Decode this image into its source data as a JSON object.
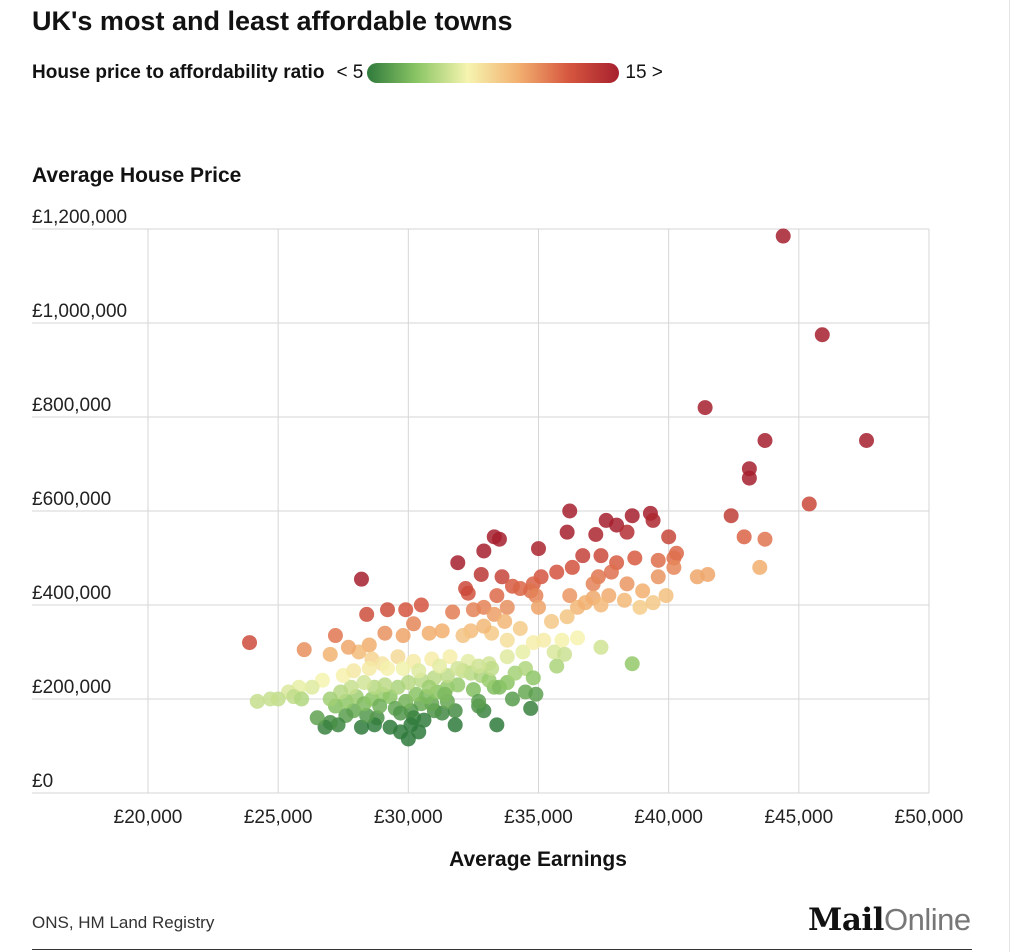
{
  "chart_data": {
    "type": "scatter",
    "title": "UK's most and least affordable towns",
    "legend": {
      "label": "House price to affordability ratio",
      "min_label": "< 5",
      "max_label": "15 >",
      "min": 5,
      "max": 15,
      "colors": [
        "#2f7a3c",
        "#8cc665",
        "#f6f4b0",
        "#f2b070",
        "#d6573f",
        "#a6202e"
      ]
    },
    "xlabel": "Average Earnings",
    "ylabel": "Average House Price",
    "xlim": [
      20000,
      50000
    ],
    "ylim": [
      0,
      1200000
    ],
    "x_ticks": [
      {
        "value": 20000,
        "label": "£20,000"
      },
      {
        "value": 25000,
        "label": "£25,000"
      },
      {
        "value": 30000,
        "label": "£30,000"
      },
      {
        "value": 35000,
        "label": "£35,000"
      },
      {
        "value": 40000,
        "label": "£40,000"
      },
      {
        "value": 45000,
        "label": "£45,000"
      },
      {
        "value": 50000,
        "label": "£50,000"
      }
    ],
    "y_ticks": [
      {
        "value": 0,
        "label": "£0"
      },
      {
        "value": 200000,
        "label": "£200,000"
      },
      {
        "value": 400000,
        "label": "£400,000"
      },
      {
        "value": 600000,
        "label": "£600,000"
      },
      {
        "value": 800000,
        "label": "£800,000"
      },
      {
        "value": 1000000,
        "label": "£1,000,000"
      },
      {
        "value": 1200000,
        "label": "£1,200,000"
      }
    ],
    "grid": true,
    "points": [
      [
        44400,
        1185000
      ],
      [
        45900,
        975000
      ],
      [
        47600,
        750000
      ],
      [
        41400,
        820000
      ],
      [
        43700,
        750000
      ],
      [
        43100,
        690000
      ],
      [
        43100,
        670000
      ],
      [
        45400,
        615000
      ],
      [
        42400,
        590000
      ],
      [
        42900,
        545000
      ],
      [
        43700,
        540000
      ],
      [
        43500,
        480000
      ],
      [
        41100,
        460000
      ],
      [
        41500,
        465000
      ],
      [
        36200,
        600000
      ],
      [
        37600,
        580000
      ],
      [
        38000,
        570000
      ],
      [
        38600,
        590000
      ],
      [
        39300,
        595000
      ],
      [
        39400,
        580000
      ],
      [
        38400,
        555000
      ],
      [
        37200,
        550000
      ],
      [
        36100,
        555000
      ],
      [
        35000,
        520000
      ],
      [
        33300,
        545000
      ],
      [
        33500,
        540000
      ],
      [
        32900,
        515000
      ],
      [
        31900,
        490000
      ],
      [
        32800,
        465000
      ],
      [
        33600,
        460000
      ],
      [
        28200,
        455000
      ],
      [
        36700,
        505000
      ],
      [
        37400,
        505000
      ],
      [
        38700,
        500000
      ],
      [
        39600,
        495000
      ],
      [
        40000,
        545000
      ],
      [
        40300,
        510000
      ],
      [
        40200,
        500000
      ],
      [
        38000,
        490000
      ],
      [
        37800,
        470000
      ],
      [
        37300,
        460000
      ],
      [
        37100,
        445000
      ],
      [
        36300,
        480000
      ],
      [
        35700,
        470000
      ],
      [
        35100,
        460000
      ],
      [
        34800,
        445000
      ],
      [
        34700,
        430000
      ],
      [
        34900,
        420000
      ],
      [
        34000,
        440000
      ],
      [
        34300,
        435000
      ],
      [
        33400,
        420000
      ],
      [
        32300,
        425000
      ],
      [
        32200,
        435000
      ],
      [
        31700,
        385000
      ],
      [
        30500,
        400000
      ],
      [
        29900,
        390000
      ],
      [
        28400,
        380000
      ],
      [
        29200,
        390000
      ],
      [
        32900,
        395000
      ],
      [
        33800,
        395000
      ],
      [
        32500,
        390000
      ],
      [
        33300,
        380000
      ],
      [
        33700,
        365000
      ],
      [
        35000,
        395000
      ],
      [
        36200,
        420000
      ],
      [
        36500,
        395000
      ],
      [
        37100,
        415000
      ],
      [
        37700,
        420000
      ],
      [
        38300,
        410000
      ],
      [
        38900,
        395000
      ],
      [
        39400,
        405000
      ],
      [
        39900,
        420000
      ],
      [
        40200,
        480000
      ],
      [
        39600,
        460000
      ],
      [
        39000,
        430000
      ],
      [
        38400,
        445000
      ],
      [
        37400,
        400000
      ],
      [
        36800,
        405000
      ],
      [
        36100,
        375000
      ],
      [
        35500,
        365000
      ],
      [
        35900,
        325000
      ],
      [
        34300,
        350000
      ],
      [
        33800,
        325000
      ],
      [
        33200,
        340000
      ],
      [
        32900,
        355000
      ],
      [
        32400,
        345000
      ],
      [
        32100,
        335000
      ],
      [
        31300,
        345000
      ],
      [
        30800,
        340000
      ],
      [
        30200,
        360000
      ],
      [
        29800,
        335000
      ],
      [
        29100,
        340000
      ],
      [
        28500,
        315000
      ],
      [
        28100,
        300000
      ],
      [
        27200,
        335000
      ],
      [
        27700,
        310000
      ],
      [
        26000,
        305000
      ],
      [
        23900,
        320000
      ],
      [
        27000,
        295000
      ],
      [
        28600,
        285000
      ],
      [
        29000,
        275000
      ],
      [
        29600,
        290000
      ],
      [
        30200,
        280000
      ],
      [
        30900,
        285000
      ],
      [
        31600,
        290000
      ],
      [
        32300,
        280000
      ],
      [
        33100,
        275000
      ],
      [
        33800,
        290000
      ],
      [
        34400,
        300000
      ],
      [
        34800,
        320000
      ],
      [
        35200,
        325000
      ],
      [
        35600,
        300000
      ],
      [
        36000,
        295000
      ],
      [
        36500,
        330000
      ],
      [
        37400,
        310000
      ],
      [
        35700,
        270000
      ],
      [
        38600,
        275000
      ],
      [
        34500,
        215000
      ],
      [
        34900,
        210000
      ],
      [
        34700,
        180000
      ],
      [
        33400,
        145000
      ],
      [
        32900,
        175000
      ],
      [
        32700,
        185000
      ],
      [
        33300,
        225000
      ],
      [
        32500,
        220000
      ],
      [
        31800,
        175000
      ],
      [
        31800,
        145000
      ],
      [
        31300,
        170000
      ],
      [
        31000,
        175000
      ],
      [
        30900,
        190000
      ],
      [
        30500,
        190000
      ],
      [
        30100,
        175000
      ],
      [
        30200,
        160000
      ],
      [
        30100,
        145000
      ],
      [
        30000,
        115000
      ],
      [
        30400,
        130000
      ],
      [
        29700,
        130000
      ],
      [
        29300,
        140000
      ],
      [
        28800,
        160000
      ],
      [
        28700,
        145000
      ],
      [
        28200,
        140000
      ],
      [
        28400,
        165000
      ],
      [
        27900,
        175000
      ],
      [
        27600,
        165000
      ],
      [
        27300,
        145000
      ],
      [
        27000,
        150000
      ],
      [
        26800,
        140000
      ],
      [
        26500,
        160000
      ],
      [
        27200,
        185000
      ],
      [
        27600,
        195000
      ],
      [
        28000,
        205000
      ],
      [
        28300,
        190000
      ],
      [
        28600,
        200000
      ],
      [
        29000,
        210000
      ],
      [
        29300,
        205000
      ],
      [
        29500,
        180000
      ],
      [
        29900,
        195000
      ],
      [
        30300,
        210000
      ],
      [
        30700,
        205000
      ],
      [
        31100,
        215000
      ],
      [
        31500,
        225000
      ],
      [
        31900,
        230000
      ],
      [
        32400,
        255000
      ],
      [
        32800,
        250000
      ],
      [
        33100,
        240000
      ],
      [
        33500,
        225000
      ],
      [
        33800,
        235000
      ],
      [
        34100,
        255000
      ],
      [
        34500,
        265000
      ],
      [
        33200,
        265000
      ],
      [
        32700,
        270000
      ],
      [
        32100,
        260000
      ],
      [
        31500,
        250000
      ],
      [
        31000,
        245000
      ],
      [
        30500,
        240000
      ],
      [
        30000,
        235000
      ],
      [
        29600,
        225000
      ],
      [
        29100,
        230000
      ],
      [
        28700,
        225000
      ],
      [
        28300,
        235000
      ],
      [
        27800,
        225000
      ],
      [
        27400,
        215000
      ],
      [
        27500,
        250000
      ],
      [
        27900,
        260000
      ],
      [
        28500,
        265000
      ],
      [
        29200,
        265000
      ],
      [
        29800,
        265000
      ],
      [
        30400,
        260000
      ],
      [
        31200,
        270000
      ],
      [
        31900,
        265000
      ],
      [
        26700,
        240000
      ],
      [
        26300,
        225000
      ],
      [
        25800,
        225000
      ],
      [
        25400,
        215000
      ],
      [
        25600,
        205000
      ],
      [
        25000,
        200000
      ],
      [
        24700,
        200000
      ],
      [
        24200,
        195000
      ],
      [
        25900,
        200000
      ],
      [
        27000,
        200000
      ],
      [
        32700,
        195000
      ],
      [
        34800,
        245000
      ],
      [
        34000,
        200000
      ],
      [
        30600,
        155000
      ],
      [
        31500,
        195000
      ],
      [
        29700,
        170000
      ],
      [
        28900,
        185000
      ],
      [
        30800,
        225000
      ],
      [
        31400,
        210000
      ]
    ],
    "source": "ONS, HM Land Registry",
    "brand": [
      "Mail",
      "Online"
    ]
  }
}
